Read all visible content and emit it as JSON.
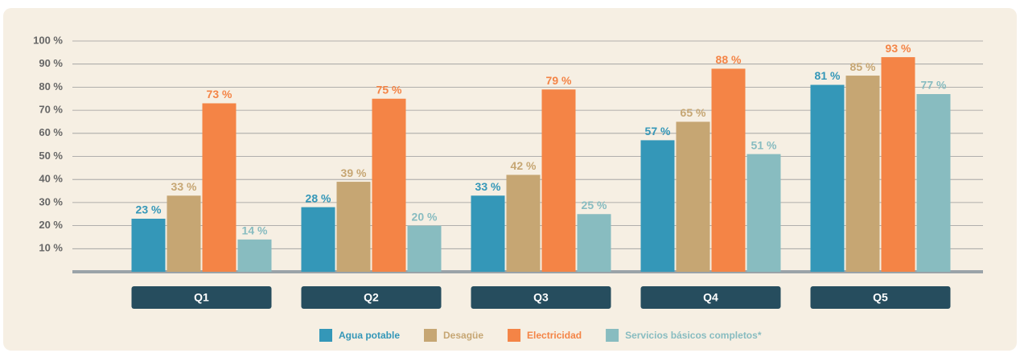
{
  "chart_data": {
    "type": "bar",
    "categories": [
      "Q1",
      "Q2",
      "Q3",
      "Q4",
      "Q5"
    ],
    "series": [
      {
        "name": "Agua potable",
        "color": "#3497b8",
        "values": [
          23,
          28,
          33,
          57,
          81
        ],
        "value_labels": [
          "23 %",
          "28 %",
          "33 %",
          "57 %",
          "81 %"
        ]
      },
      {
        "name": "Desagüe",
        "color": "#c6a673",
        "values": [
          33,
          39,
          42,
          65,
          85
        ],
        "value_labels": [
          "33 %",
          "39 %",
          "42 %",
          "65 %",
          "85 %"
        ]
      },
      {
        "name": "Electricidad",
        "color": "#f48446",
        "values": [
          73,
          75,
          79,
          88,
          93
        ],
        "value_labels": [
          "73 %",
          "75 %",
          "79 %",
          "88 %",
          "93 %"
        ]
      },
      {
        "name": "Servicios básicos completos*",
        "color": "#88bcc0",
        "values": [
          14,
          20,
          25,
          51,
          77
        ],
        "value_labels": [
          "14 %",
          "20 %",
          "25 %",
          "51 %",
          "77 %"
        ]
      }
    ],
    "ylim": [
      0,
      100
    ],
    "yticks": [
      {
        "value": 10,
        "label": "10 %"
      },
      {
        "value": 20,
        "label": "20 %"
      },
      {
        "value": 30,
        "label": "30 %"
      },
      {
        "value": 40,
        "label": "40 %"
      },
      {
        "value": 50,
        "label": "50 %"
      },
      {
        "value": 60,
        "label": "60 %"
      },
      {
        "value": 70,
        "label": "70 %"
      },
      {
        "value": 80,
        "label": "80 %"
      },
      {
        "value": 90,
        "label": "90 %"
      },
      {
        "value": 100,
        "label": "100 %"
      }
    ],
    "grid": true,
    "legend": "bottom"
  }
}
